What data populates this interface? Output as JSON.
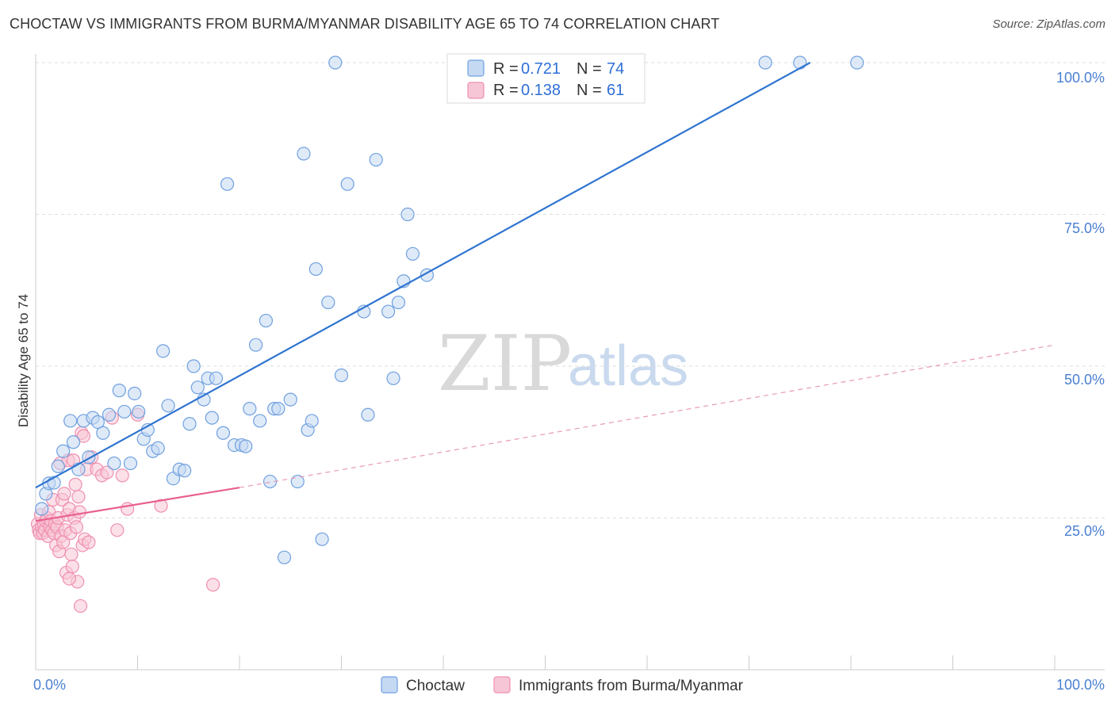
{
  "header": {
    "title": "CHOCTAW VS IMMIGRANTS FROM BURMA/MYANMAR DISABILITY AGE 65 TO 74 CORRELATION CHART",
    "source": "Source: ZipAtlas.com"
  },
  "watermark": {
    "zip": "ZIP",
    "atlas": "atlas"
  },
  "legend": {
    "rows": [
      {
        "r_label": "R = ",
        "r_value": "0.721",
        "n_label": "N = ",
        "n_value": "74"
      },
      {
        "r_label": "R = ",
        "r_value": "0.138",
        "n_label": "N = ",
        "n_value": "61"
      }
    ]
  },
  "chart_data": {
    "type": "scatter",
    "title": "CHOCTAW VS IMMIGRANTS FROM BURMA/MYANMAR DISABILITY AGE 65 TO 74 CORRELATION CHART",
    "xlabel": "",
    "ylabel": "Disability Age 65 to 74",
    "xlim": [
      0,
      100
    ],
    "ylim": [
      0,
      100
    ],
    "x_tick_labels": [
      "0.0%",
      "100.0%"
    ],
    "y_tick_labels": [
      "25.0%",
      "50.0%",
      "75.0%",
      "100.0%"
    ],
    "y_ticks": [
      25,
      50,
      75,
      100
    ],
    "grid": true,
    "legend_position": "top-center",
    "series": [
      {
        "name": "Choctaw",
        "color": "#6fa0e0",
        "fill": "#c5d9f3",
        "R": 0.721,
        "N": 74,
        "trend": {
          "x": [
            0,
            76
          ],
          "y": [
            30,
            100
          ],
          "style": "solid",
          "color": "#2f74d0"
        },
        "points": [
          [
            0.6,
            26.5
          ],
          [
            1.0,
            29.0
          ],
          [
            1.3,
            30.7
          ],
          [
            1.8,
            30.8
          ],
          [
            2.2,
            33.5
          ],
          [
            2.7,
            36.0
          ],
          [
            3.4,
            41.0
          ],
          [
            3.7,
            37.5
          ],
          [
            4.2,
            33.0
          ],
          [
            4.7,
            41.0
          ],
          [
            5.2,
            35.0
          ],
          [
            5.6,
            41.5
          ],
          [
            6.1,
            40.8
          ],
          [
            6.6,
            39.0
          ],
          [
            7.2,
            42.0
          ],
          [
            7.7,
            34.0
          ],
          [
            8.2,
            46.0
          ],
          [
            8.7,
            42.5
          ],
          [
            9.3,
            34.0
          ],
          [
            9.7,
            45.5
          ],
          [
            10.1,
            42.5
          ],
          [
            10.6,
            38.0
          ],
          [
            11.0,
            39.5
          ],
          [
            11.5,
            36.0
          ],
          [
            12.0,
            36.5
          ],
          [
            12.5,
            52.5
          ],
          [
            13.0,
            43.5
          ],
          [
            13.5,
            31.5
          ],
          [
            14.1,
            33.0
          ],
          [
            14.6,
            32.8
          ],
          [
            15.1,
            40.5
          ],
          [
            15.5,
            50.0
          ],
          [
            15.9,
            46.5
          ],
          [
            16.5,
            44.5
          ],
          [
            16.9,
            48.0
          ],
          [
            17.3,
            41.5
          ],
          [
            17.7,
            48.0
          ],
          [
            18.4,
            39.0
          ],
          [
            18.8,
            80.0
          ],
          [
            19.5,
            37.0
          ],
          [
            20.2,
            37.0
          ],
          [
            20.6,
            36.8
          ],
          [
            21.0,
            43.0
          ],
          [
            21.6,
            53.5
          ],
          [
            22.0,
            41.0
          ],
          [
            22.6,
            57.5
          ],
          [
            23.0,
            31.0
          ],
          [
            23.4,
            43.0
          ],
          [
            23.8,
            43.0
          ],
          [
            24.4,
            18.5
          ],
          [
            25.0,
            44.5
          ],
          [
            25.7,
            31.0
          ],
          [
            26.3,
            85.0
          ],
          [
            26.7,
            39.5
          ],
          [
            27.1,
            41.0
          ],
          [
            27.5,
            66.0
          ],
          [
            28.1,
            21.5
          ],
          [
            28.7,
            60.5
          ],
          [
            29.4,
            100.0
          ],
          [
            30.0,
            48.5
          ],
          [
            30.6,
            80.0
          ],
          [
            32.2,
            59.0
          ],
          [
            32.6,
            42.0
          ],
          [
            33.4,
            84.0
          ],
          [
            34.6,
            59.0
          ],
          [
            35.1,
            48.0
          ],
          [
            35.6,
            60.5
          ],
          [
            36.1,
            64.0
          ],
          [
            36.5,
            75.0
          ],
          [
            37.0,
            68.5
          ],
          [
            38.4,
            65.0
          ],
          [
            71.6,
            100.0
          ],
          [
            80.6,
            100.0
          ],
          [
            75.0,
            100.0
          ]
        ]
      },
      {
        "name": "Immigrants from Burma/Myanmar",
        "color": "#f08fb0",
        "fill": "#f7c6d6",
        "R": 0.138,
        "N": 61,
        "trend": {
          "x": [
            0,
            20
          ],
          "y": [
            24.5,
            30
          ],
          "style": "solid",
          "color": "#e8608e"
        },
        "trend_extended": {
          "x": [
            20,
            100
          ],
          "y": [
            30,
            53.5
          ],
          "style": "dashed",
          "color": "#e89ab4"
        },
        "points": [
          [
            0.2,
            24.0
          ],
          [
            0.3,
            23.0
          ],
          [
            0.4,
            22.5
          ],
          [
            0.5,
            25.5
          ],
          [
            0.6,
            23.5
          ],
          [
            0.7,
            22.5
          ],
          [
            0.8,
            24.0
          ],
          [
            0.9,
            23.0
          ],
          [
            1.0,
            24.5
          ],
          [
            1.1,
            25.0
          ],
          [
            1.2,
            22.0
          ],
          [
            1.3,
            26.0
          ],
          [
            1.4,
            23.5
          ],
          [
            1.5,
            24.5
          ],
          [
            1.6,
            23.0
          ],
          [
            1.7,
            28.0
          ],
          [
            1.8,
            22.5
          ],
          [
            1.9,
            24.0
          ],
          [
            2.0,
            20.5
          ],
          [
            2.1,
            23.5
          ],
          [
            2.2,
            25.0
          ],
          [
            2.3,
            19.5
          ],
          [
            2.4,
            34.0
          ],
          [
            2.5,
            22.0
          ],
          [
            2.6,
            28.0
          ],
          [
            2.7,
            21.0
          ],
          [
            2.8,
            29.0
          ],
          [
            2.9,
            23.0
          ],
          [
            3.0,
            16.0
          ],
          [
            3.1,
            25.5
          ],
          [
            3.2,
            34.5
          ],
          [
            3.3,
            26.5
          ],
          [
            3.4,
            22.5
          ],
          [
            3.5,
            19.0
          ],
          [
            3.6,
            17.0
          ],
          [
            3.7,
            34.5
          ],
          [
            3.8,
            25.0
          ],
          [
            3.9,
            30.5
          ],
          [
            4.0,
            23.5
          ],
          [
            4.1,
            14.5
          ],
          [
            4.2,
            28.5
          ],
          [
            4.3,
            26.0
          ],
          [
            4.4,
            10.5
          ],
          [
            4.5,
            39.0
          ],
          [
            4.6,
            20.5
          ],
          [
            4.7,
            38.5
          ],
          [
            4.8,
            21.5
          ],
          [
            5.0,
            33.0
          ],
          [
            5.2,
            21.0
          ],
          [
            5.5,
            35.0
          ],
          [
            6.0,
            33.0
          ],
          [
            6.5,
            32.0
          ],
          [
            7.0,
            32.5
          ],
          [
            7.5,
            41.5
          ],
          [
            8.0,
            23.0
          ],
          [
            8.5,
            32.0
          ],
          [
            9.0,
            26.5
          ],
          [
            10.0,
            42.0
          ],
          [
            12.3,
            27.0
          ],
          [
            17.4,
            14.0
          ],
          [
            3.3,
            15.0
          ]
        ]
      }
    ]
  },
  "bottom_legend": {
    "items": [
      {
        "label": "Choctaw"
      },
      {
        "label": "Immigrants from Burma/Myanmar"
      }
    ]
  }
}
